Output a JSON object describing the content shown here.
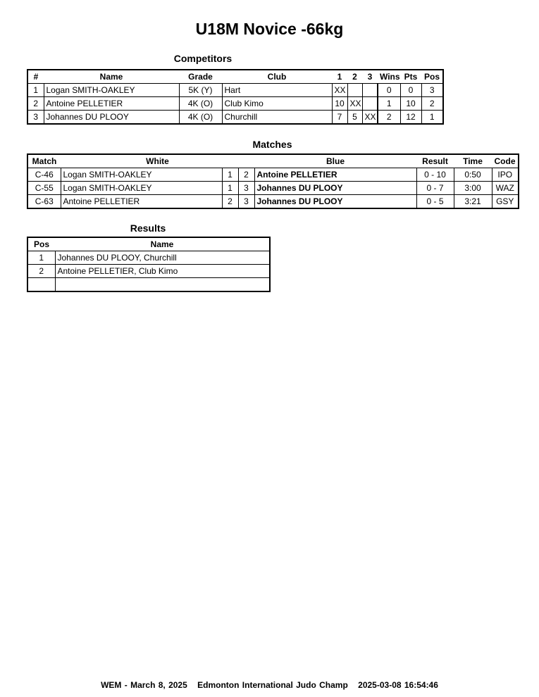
{
  "title": "U18M Novice -66kg",
  "competitors": {
    "heading": "Competitors",
    "columns": [
      "#",
      "Name",
      "Grade",
      "Club",
      "1",
      "2",
      "3",
      "Wins",
      "Pts",
      "Pos"
    ],
    "rows": [
      [
        "1",
        "Logan SMITH-OAKLEY",
        "5K (Y)",
        "Hart",
        "XX",
        "",
        "",
        "0",
        "0",
        "3"
      ],
      [
        "2",
        "Antoine PELLETIER",
        "4K (O)",
        "Club Kimo",
        "10",
        "XX",
        "",
        "1",
        "10",
        "2"
      ],
      [
        "3",
        "Johannes DU PLOOY",
        "4K (O)",
        "Churchill",
        "7",
        "5",
        "XX",
        "2",
        "12",
        "1"
      ]
    ]
  },
  "matches": {
    "heading": "Matches",
    "columns": [
      "Match",
      "White",
      "Blue",
      "Result",
      "Time",
      "Code"
    ],
    "rows": [
      [
        "C-46",
        "Logan SMITH-OAKLEY",
        "1",
        "2",
        "Antoine PELLETIER",
        "0 - 10",
        "0:50",
        "IPO"
      ],
      [
        "C-55",
        "Logan SMITH-OAKLEY",
        "1",
        "3",
        "Johannes DU PLOOY",
        "0 - 7",
        "3:00",
        "WAZ"
      ],
      [
        "C-63",
        "Antoine PELLETIER",
        "2",
        "3",
        "Johannes DU PLOOY",
        "0 - 5",
        "3:21",
        "GSY"
      ]
    ]
  },
  "results": {
    "heading": "Results",
    "columns": [
      "Pos",
      "Name"
    ],
    "rows": [
      [
        "1",
        "Johannes DU PLOOY, Churchill"
      ],
      [
        "2",
        "Antoine PELLETIER, Club Kimo"
      ],
      [
        "",
        ""
      ]
    ]
  },
  "footer": {
    "event": "WEM - March 8, 2025",
    "name": "Edmonton International Judo Champ",
    "timestamp": "2025-03-08 16:54:46"
  }
}
